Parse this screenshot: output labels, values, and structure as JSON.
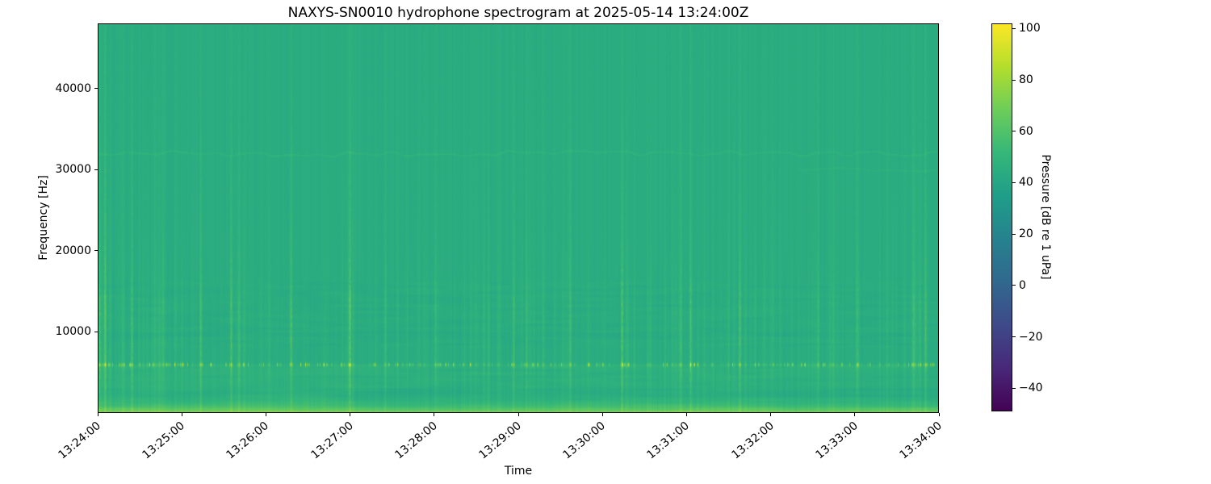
{
  "figure": {
    "title": "NAXYS-SN0010 hydrophone spectrogram at 2025-05-14 13:24:00Z",
    "xlabel": "Time",
    "ylabel": "Frequency [Hz]",
    "background_color": "#ffffff",
    "spine_color": "#000000"
  },
  "colorbar": {
    "label": "Pressure [dB re 1 uPa]",
    "tick_labels": [
      "100",
      "80",
      "60",
      "40",
      "20",
      "0",
      "−20",
      "−40"
    ],
    "tick_values": [
      100,
      80,
      60,
      40,
      20,
      0,
      -20,
      -40
    ],
    "vmin": -49,
    "vmax": 102,
    "colormap": "viridis",
    "gradient_stops": [
      "#440154",
      "#482878",
      "#3e4a89",
      "#31688e",
      "#26828e",
      "#1f9e89",
      "#35b779",
      "#6dcd59",
      "#b4de2c",
      "#fde725"
    ]
  },
  "chart_data": {
    "type": "heatmap",
    "subtype": "spectrogram",
    "title": "NAXYS-SN0010 hydrophone spectrogram at 2025-05-14 13:24:00Z",
    "xlabel": "Time",
    "ylabel": "Frequency [Hz]",
    "x_ticks": [
      "13:24:00",
      "13:25:00",
      "13:26:00",
      "13:27:00",
      "13:28:00",
      "13:29:00",
      "13:30:00",
      "13:31:00",
      "13:32:00",
      "13:33:00",
      "13:34:00"
    ],
    "x_tick_rotation_deg": -40,
    "y_ticks": [
      10000,
      20000,
      30000,
      40000
    ],
    "y_tick_labels": [
      "10000",
      "20000",
      "30000",
      "40000"
    ],
    "ylim": [
      0,
      48000
    ],
    "value_range_db": [
      -49,
      102
    ],
    "grid": false,
    "legend": "none",
    "background_level_db": 44,
    "features": {
      "broadband_click_times": [
        "13:24:01",
        "13:24:05",
        "13:24:24",
        "13:25:13",
        "13:25:35",
        "13:25:41",
        "13:26:18",
        "13:27:00",
        "13:28:01",
        "13:28:57",
        "13:29:06",
        "13:29:37",
        "13:30:14",
        "13:30:56",
        "13:31:03",
        "13:31:38",
        "13:32:34",
        "13:33:02",
        "13:33:42",
        "13:33:51"
      ],
      "click_band_hz": [
        4000,
        16000
      ],
      "click_peak_level_db": 90,
      "bright_tonal_hz": 6000,
      "bright_tonal_level_db": 88,
      "striation_band_hz": [
        8000,
        16000
      ],
      "low_freq_band_hz": [
        0,
        3000
      ],
      "low_freq_max_level_db": 78,
      "weak_tonal_1_hz": 32000,
      "weak_tonal_1_span": [
        "13:24:00",
        "13:34:00"
      ],
      "weak_tonal_2_hz": 30000,
      "weak_tonal_2_span": [
        "13:32:20",
        "13:34:00"
      ],
      "weak_tonal_level_db": 48
    }
  },
  "spectrogram_render": {
    "seed": 20250514,
    "base_db": 44,
    "column_noise_db": 2.2,
    "lower_column_noise_db": 3.2,
    "minor_click_count": 130,
    "minor_click_db": [
      1,
      6
    ],
    "major_click_db": [
      9,
      17
    ],
    "speckle_count": 150,
    "speckle_db": [
      8,
      30
    ]
  }
}
